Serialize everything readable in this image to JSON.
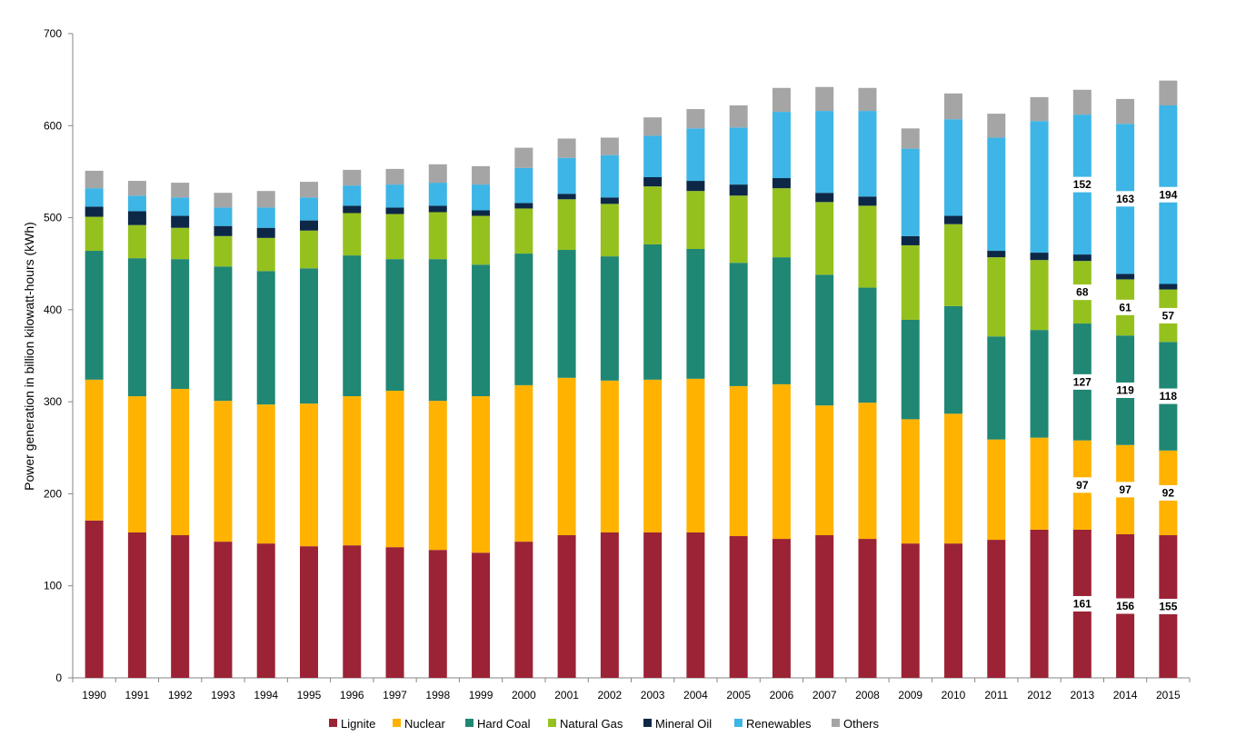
{
  "chart_data": {
    "type": "bar",
    "stacked": true,
    "title": "",
    "xlabel": "",
    "ylabel": "Power generation in billion kilowatt-hours (kWh)",
    "ylim": [
      0,
      700
    ],
    "yticks": [
      0,
      100,
      200,
      300,
      400,
      500,
      600,
      700
    ],
    "grid": false,
    "legend_position": "bottom",
    "categories": [
      "1990",
      "1991",
      "1992",
      "1993",
      "1994",
      "1995",
      "1996",
      "1997",
      "1998",
      "1999",
      "2000",
      "2001",
      "2002",
      "2003",
      "2004",
      "2005",
      "2006",
      "2007",
      "2008",
      "2009",
      "2010",
      "2011",
      "2012",
      "2013",
      "2014",
      "2015"
    ],
    "series": [
      {
        "name": "Lignite",
        "color": "#9B2335",
        "values": [
          171,
          158,
          155,
          148,
          146,
          143,
          144,
          142,
          139,
          136,
          148,
          155,
          158,
          158,
          158,
          154,
          151,
          155,
          151,
          146,
          146,
          150,
          161,
          161,
          156,
          155
        ]
      },
      {
        "name": "Nuclear",
        "color": "#FFB300",
        "values": [
          153,
          148,
          159,
          153,
          151,
          155,
          162,
          170,
          162,
          170,
          170,
          171,
          165,
          166,
          167,
          163,
          168,
          141,
          148,
          135,
          141,
          109,
          100,
          97,
          97,
          92
        ]
      },
      {
        "name": "Hard Coal",
        "color": "#1F8774",
        "values": [
          140,
          150,
          141,
          146,
          145,
          147,
          153,
          143,
          154,
          143,
          143,
          139,
          135,
          147,
          141,
          134,
          138,
          142,
          125,
          108,
          117,
          112,
          117,
          127,
          119,
          118
        ]
      },
      {
        "name": "Natural Gas",
        "color": "#95C11F",
        "values": [
          37,
          36,
          34,
          33,
          36,
          41,
          46,
          49,
          51,
          53,
          49,
          55,
          57,
          63,
          63,
          73,
          75,
          79,
          89,
          81,
          89,
          86,
          76,
          68,
          61,
          57
        ]
      },
      {
        "name": "Mineral Oil",
        "color": "#0D2847",
        "values": [
          11,
          15,
          13,
          11,
          11,
          11,
          8,
          7,
          7,
          6,
          6,
          6,
          7,
          10,
          11,
          12,
          11,
          10,
          10,
          10,
          9,
          7,
          8,
          7,
          6,
          6
        ]
      },
      {
        "name": "Renewables",
        "color": "#3DB5E6",
        "values": [
          20,
          17,
          20,
          20,
          22,
          25,
          22,
          25,
          25,
          28,
          38,
          39,
          46,
          45,
          57,
          62,
          72,
          89,
          93,
          95,
          105,
          123,
          143,
          152,
          163,
          194
        ]
      },
      {
        "name": "Others",
        "color": "#A5A5A5",
        "values": [
          19,
          16,
          16,
          16,
          18,
          17,
          17,
          17,
          20,
          20,
          22,
          21,
          19,
          20,
          21,
          24,
          26,
          26,
          25,
          22,
          28,
          26,
          26,
          27,
          27,
          27
        ]
      }
    ],
    "data_labels": [
      {
        "category": "2013",
        "series": "Lignite",
        "text": "161"
      },
      {
        "category": "2013",
        "series": "Nuclear",
        "text": "97"
      },
      {
        "category": "2013",
        "series": "Hard Coal",
        "text": "127"
      },
      {
        "category": "2013",
        "series": "Natural Gas",
        "text": "68"
      },
      {
        "category": "2013",
        "series": "Renewables",
        "text": "152"
      },
      {
        "category": "2014",
        "series": "Lignite",
        "text": "156"
      },
      {
        "category": "2014",
        "series": "Nuclear",
        "text": "97"
      },
      {
        "category": "2014",
        "series": "Hard Coal",
        "text": "119"
      },
      {
        "category": "2014",
        "series": "Natural Gas",
        "text": "61"
      },
      {
        "category": "2014",
        "series": "Renewables",
        "text": "163"
      },
      {
        "category": "2015",
        "series": "Lignite",
        "text": "155"
      },
      {
        "category": "2015",
        "series": "Nuclear",
        "text": "92"
      },
      {
        "category": "2015",
        "series": "Hard Coal",
        "text": "118"
      },
      {
        "category": "2015",
        "series": "Natural Gas",
        "text": "57"
      },
      {
        "category": "2015",
        "series": "Renewables",
        "text": "194"
      }
    ]
  }
}
